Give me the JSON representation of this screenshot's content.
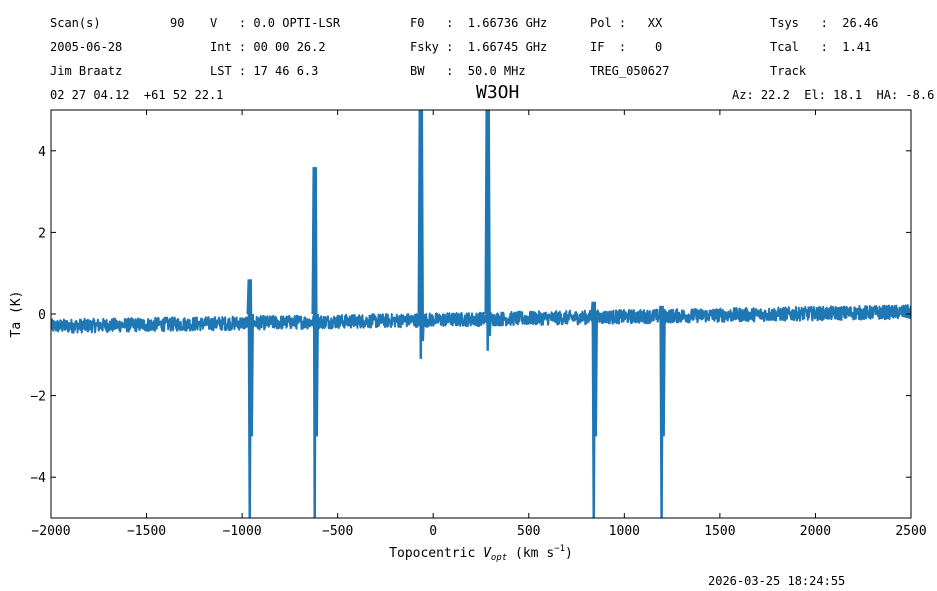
{
  "header": {
    "scan_label": "Scan(s)",
    "scan_value": "90",
    "date": "2005-06-28",
    "observer": "Jim Braatz",
    "coords": "02 27 04.12  +61 52 22.1",
    "v_line": "V   : 0.0 OPTI-LSR",
    "int_line": "Int : 00 00 26.2",
    "lst_line": "LST : 17 46 6.3",
    "f0_line": "F0   :  1.66736 GHz",
    "fsky_line": "Fsky :  1.66745 GHz",
    "bw_line": "BW   :  50.0 MHz",
    "pol_line": "Pol :   XX",
    "if_line": "IF  :    0",
    "treg_line": "TREG_050627",
    "tsys_line": "Tsys   :  26.46",
    "tcal_line": "Tcal   :  1.41",
    "track_line": "Track",
    "azel_line": "Az: 22.2  El: 18.1  HA: -8.6"
  },
  "timestamp": "2026-03-25 18:24:55",
  "chart_data": {
    "type": "line",
    "title": "W3OH",
    "xlabel_main": "Topocentric ",
    "xlabel_v": "V",
    "xlabel_sub": "opt",
    "xlabel_units": "(km s",
    "xlabel_sup": "−1",
    "xlabel_close": ")",
    "ylabel": "Ta (K)",
    "xlim": [
      -2000,
      2500
    ],
    "ylim": [
      -5,
      5
    ],
    "xticks": [
      -2000,
      -1500,
      -1000,
      -500,
      0,
      500,
      1000,
      1500,
      2000,
      2500
    ],
    "xtick_labels": [
      "−2000",
      "−1500",
      "−1000",
      "−500",
      "0",
      "500",
      "1000",
      "1500",
      "2000",
      "2500"
    ],
    "yticks": [
      -4,
      -2,
      0,
      2,
      4
    ],
    "ytick_labels": [
      "−4",
      "−2",
      "0",
      "2",
      "4"
    ],
    "line_color": "#1f77b4",
    "baseline": {
      "start_value": -0.3,
      "end_value": 0.05,
      "noise_amplitude": 0.17
    },
    "features": [
      {
        "x": -960,
        "min": -5.0,
        "max": 0.85
      },
      {
        "x": -620,
        "min": -5.0,
        "max": 3.6
      },
      {
        "x": -65,
        "min": -1.1,
        "max": 5.0
      },
      {
        "x": 285,
        "min": -0.9,
        "max": 5.0
      },
      {
        "x": 840,
        "min": -5.0,
        "max": 0.3
      },
      {
        "x": 1195,
        "min": -5.0,
        "max": 0.2
      }
    ]
  }
}
